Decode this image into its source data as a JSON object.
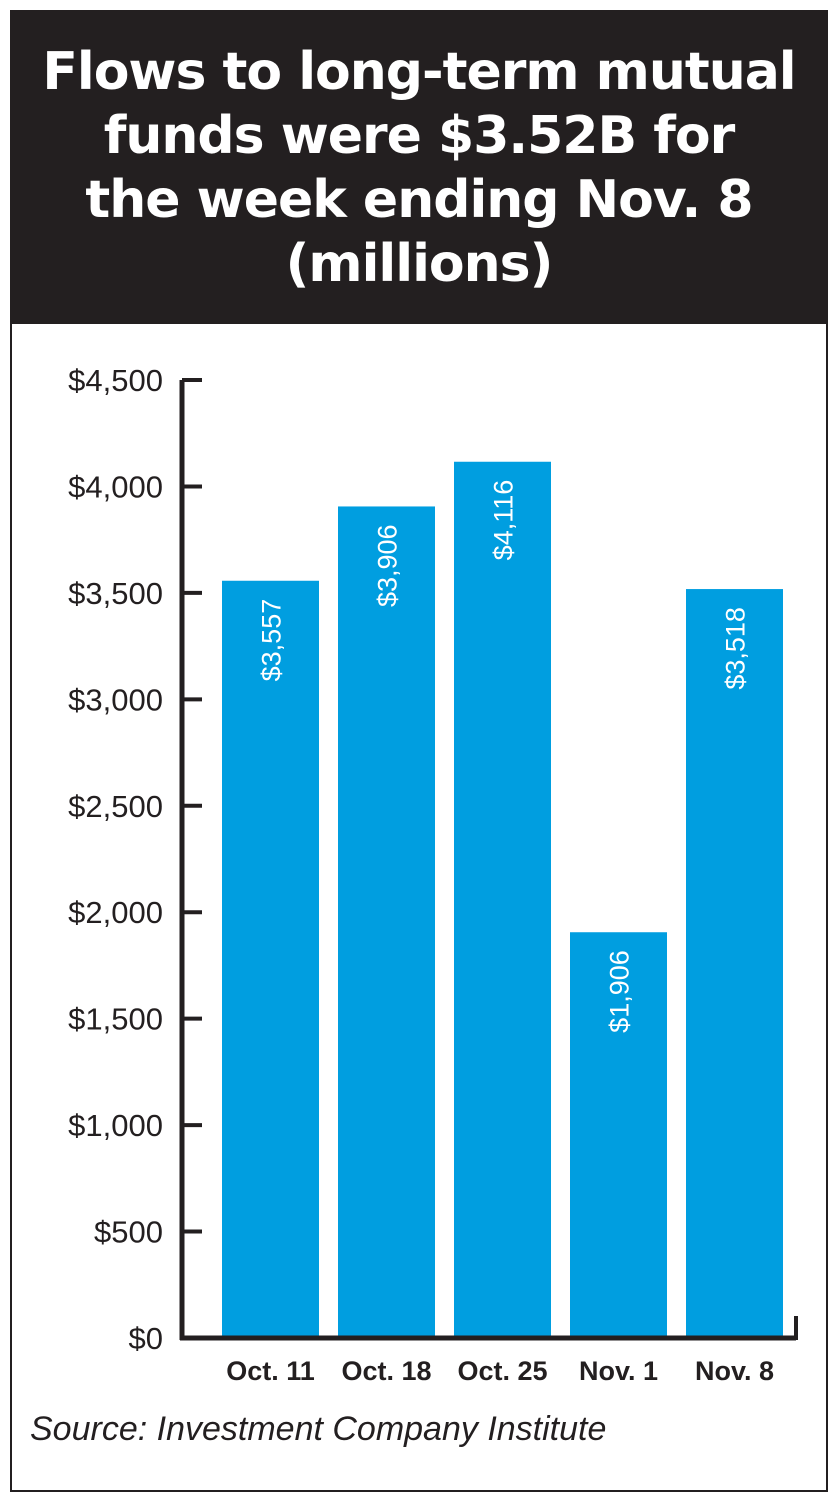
{
  "title": "Flows to long-term mutual\nfunds were $3.52B for\nthe week ending Nov. 8\n(millions)",
  "source": "Source: Investment Company Institute",
  "colors": {
    "bar": "#009ee0",
    "title_bg": "#231f20",
    "title_text": "#ffffff",
    "axis": "#231f20"
  },
  "chart_data": {
    "type": "bar",
    "title": "Flows to long-term mutual funds were $3.52B for the week ending Nov. 8 (millions)",
    "xlabel": "",
    "ylabel": "",
    "categories": [
      "Oct. 11",
      "Oct. 18",
      "Oct. 25",
      "Nov. 1",
      "Nov. 8"
    ],
    "values": [
      3557,
      3906,
      4116,
      1906,
      3518
    ],
    "data_labels": [
      "$3,557",
      "$3,906",
      "$4,116",
      "$1,906",
      "$3,518"
    ],
    "ylim": [
      0,
      4500
    ],
    "yticks": [
      0,
      500,
      1000,
      1500,
      2000,
      2500,
      3000,
      3500,
      4000,
      4500
    ],
    "ytick_labels": [
      "$0",
      "$500",
      "$1,000",
      "$1,500",
      "$2,000",
      "$2,500",
      "$3,000",
      "$3,500",
      "$4,000",
      "$4,500"
    ],
    "grid": false,
    "legend": "none"
  }
}
